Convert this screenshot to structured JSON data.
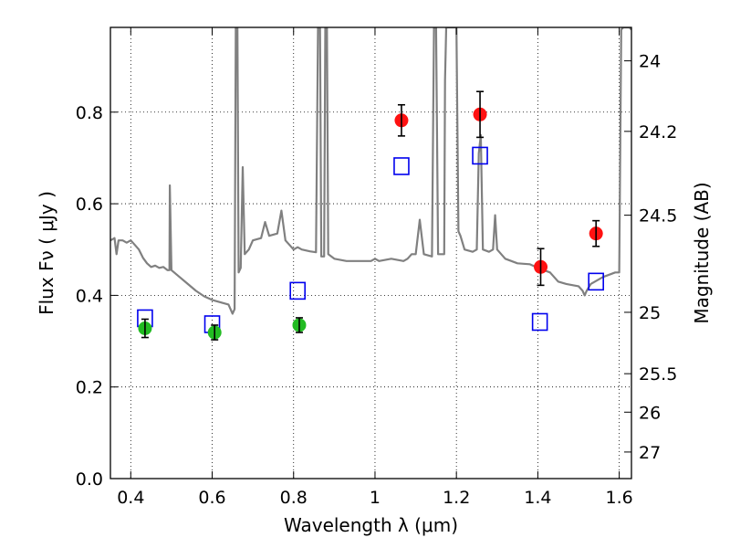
{
  "chart_data": {
    "type": "scatter",
    "xlabel": "Wavelength  λ (μm)",
    "ylabel": "Flux  Fν  ( μJy )",
    "ylabel_right": "Magnitude (AB)",
    "xlim": [
      0.35,
      1.63
    ],
    "ylim": [
      0.0,
      0.985
    ],
    "x_ticks": [
      0.4,
      0.6,
      0.8,
      1.0,
      1.2,
      1.4,
      1.6
    ],
    "x_tick_labels": [
      "0.4",
      "0.6",
      "0.8",
      "1",
      "1.2",
      "1.4",
      "1.6"
    ],
    "y_ticks": [
      0.0,
      0.2,
      0.4,
      0.6,
      0.8
    ],
    "y_tick_labels": [
      "0.0",
      "0.2",
      "0.4",
      "0.6",
      "0.8"
    ],
    "right_ticks": [
      {
        "flux": 0.912,
        "label": "24"
      },
      {
        "flux": 0.758,
        "label": "24.2"
      },
      {
        "flux": 0.575,
        "label": "24.5"
      },
      {
        "flux": 0.363,
        "label": "25"
      },
      {
        "flux": 0.229,
        "label": "25.5"
      },
      {
        "flux": 0.145,
        "label": "26"
      },
      {
        "flux": 0.058,
        "label": "27"
      }
    ],
    "grid": true,
    "grid_style": "dotted",
    "series": [
      {
        "kind": "green-points",
        "color": "#22bb22",
        "points": [
          {
            "x": 0.435,
            "y": 0.328,
            "err": 0.02
          },
          {
            "x": 0.606,
            "y": 0.319,
            "err": 0.016
          },
          {
            "x": 0.814,
            "y": 0.335,
            "err": 0.016
          }
        ]
      },
      {
        "kind": "red-points",
        "color": "#ff1111",
        "points": [
          {
            "x": 1.065,
            "y": 0.782,
            "err": 0.034
          },
          {
            "x": 1.258,
            "y": 0.795,
            "err": 0.05
          },
          {
            "x": 1.407,
            "y": 0.462,
            "err": 0.04
          },
          {
            "x": 1.543,
            "y": 0.535,
            "err": 0.028
          }
        ]
      },
      {
        "kind": "blue-squares",
        "color": "#0000ee",
        "points": [
          {
            "x": 0.435,
            "y": 0.35
          },
          {
            "x": 0.6,
            "y": 0.337
          },
          {
            "x": 0.81,
            "y": 0.41
          },
          {
            "x": 1.065,
            "y": 0.682
          },
          {
            "x": 1.258,
            "y": 0.705
          },
          {
            "x": 1.405,
            "y": 0.342
          },
          {
            "x": 1.543,
            "y": 0.43
          }
        ]
      },
      {
        "kind": "model-spectrum",
        "color": "#808080",
        "points": [
          [
            0.35,
            0.52
          ],
          [
            0.36,
            0.525
          ],
          [
            0.365,
            0.49
          ],
          [
            0.37,
            0.52
          ],
          [
            0.38,
            0.52
          ],
          [
            0.39,
            0.515
          ],
          [
            0.4,
            0.52
          ],
          [
            0.41,
            0.51
          ],
          [
            0.42,
            0.5
          ],
          [
            0.43,
            0.482
          ],
          [
            0.44,
            0.47
          ],
          [
            0.45,
            0.462
          ],
          [
            0.46,
            0.465
          ],
          [
            0.47,
            0.46
          ],
          [
            0.48,
            0.462
          ],
          [
            0.49,
            0.455
          ],
          [
            0.495,
            0.455
          ],
          [
            0.496,
            0.64
          ],
          [
            0.5,
            0.455
          ],
          [
            0.52,
            0.44
          ],
          [
            0.54,
            0.425
          ],
          [
            0.56,
            0.41
          ],
          [
            0.58,
            0.398
          ],
          [
            0.6,
            0.39
          ],
          [
            0.62,
            0.385
          ],
          [
            0.64,
            0.38
          ],
          [
            0.645,
            0.37
          ],
          [
            0.65,
            0.36
          ],
          [
            0.655,
            0.37
          ],
          [
            0.658,
            0.985
          ],
          [
            0.662,
            0.985
          ],
          [
            0.665,
            0.45
          ],
          [
            0.67,
            0.46
          ],
          [
            0.675,
            0.68
          ],
          [
            0.68,
            0.49
          ],
          [
            0.69,
            0.5
          ],
          [
            0.7,
            0.52
          ],
          [
            0.72,
            0.525
          ],
          [
            0.73,
            0.56
          ],
          [
            0.74,
            0.53
          ],
          [
            0.76,
            0.535
          ],
          [
            0.77,
            0.585
          ],
          [
            0.78,
            0.52
          ],
          [
            0.79,
            0.51
          ],
          [
            0.8,
            0.5
          ],
          [
            0.81,
            0.505
          ],
          [
            0.82,
            0.5
          ],
          [
            0.84,
            0.496
          ],
          [
            0.855,
            0.494
          ],
          [
            0.86,
            0.985
          ],
          [
            0.865,
            0.985
          ],
          [
            0.868,
            0.485
          ],
          [
            0.875,
            0.485
          ],
          [
            0.878,
            0.985
          ],
          [
            0.882,
            0.985
          ],
          [
            0.885,
            0.49
          ],
          [
            0.9,
            0.48
          ],
          [
            0.93,
            0.475
          ],
          [
            0.96,
            0.475
          ],
          [
            0.99,
            0.475
          ],
          [
            1.0,
            0.48
          ],
          [
            1.01,
            0.475
          ],
          [
            1.04,
            0.48
          ],
          [
            1.07,
            0.475
          ],
          [
            1.08,
            0.48
          ],
          [
            1.09,
            0.49
          ],
          [
            1.1,
            0.49
          ],
          [
            1.11,
            0.565
          ],
          [
            1.12,
            0.49
          ],
          [
            1.14,
            0.485
          ],
          [
            1.145,
            0.985
          ],
          [
            1.15,
            0.985
          ],
          [
            1.155,
            0.49
          ],
          [
            1.17,
            0.49
          ],
          [
            1.172,
            0.87
          ],
          [
            1.175,
            0.985
          ],
          [
            1.2,
            0.985
          ],
          [
            1.205,
            0.54
          ],
          [
            1.21,
            0.53
          ],
          [
            1.22,
            0.5
          ],
          [
            1.24,
            0.495
          ],
          [
            1.25,
            0.5
          ],
          [
            1.255,
            0.71
          ],
          [
            1.26,
            0.75
          ],
          [
            1.265,
            0.5
          ],
          [
            1.28,
            0.495
          ],
          [
            1.29,
            0.5
          ],
          [
            1.295,
            0.575
          ],
          [
            1.3,
            0.5
          ],
          [
            1.32,
            0.48
          ],
          [
            1.35,
            0.47
          ],
          [
            1.38,
            0.468
          ],
          [
            1.4,
            0.46
          ],
          [
            1.43,
            0.45
          ],
          [
            1.45,
            0.43
          ],
          [
            1.47,
            0.425
          ],
          [
            1.5,
            0.42
          ],
          [
            1.51,
            0.41
          ],
          [
            1.515,
            0.4
          ],
          [
            1.52,
            0.41
          ],
          [
            1.53,
            0.425
          ],
          [
            1.56,
            0.44
          ],
          [
            1.59,
            0.45
          ],
          [
            1.6,
            0.45
          ],
          [
            1.605,
            0.98
          ],
          [
            1.61,
            0.985
          ],
          [
            1.62,
            0.985
          ],
          [
            1.625,
            0.985
          ],
          [
            1.63,
            0.98
          ]
        ]
      }
    ]
  }
}
